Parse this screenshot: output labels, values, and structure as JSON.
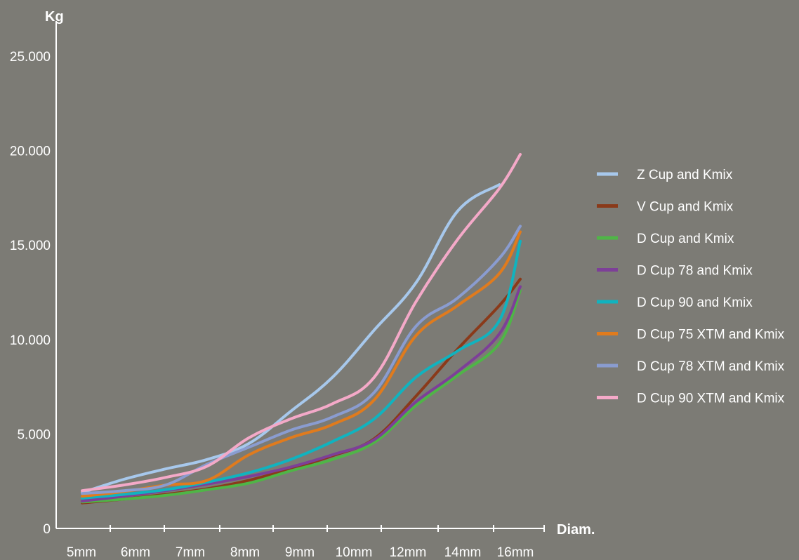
{
  "chart_data": {
    "type": "line",
    "title": "",
    "ylabel": "Kg",
    "xlabel": "Diam.",
    "categories": [
      "5mm",
      "6mm",
      "7mm",
      "8mm",
      "9mm",
      "10mm",
      "12mm",
      "14mm",
      "16mm"
    ],
    "y_ticks": [
      {
        "value": 0,
        "label": "0"
      },
      {
        "value": 5000,
        "label": "5.000"
      },
      {
        "value": 10000,
        "label": "10.000"
      },
      {
        "value": 15000,
        "label": "15.000"
      },
      {
        "value": 20000,
        "label": "20.000"
      },
      {
        "value": 25000,
        "label": "25.000"
      }
    ],
    "ylim": [
      0,
      25000
    ],
    "grid": false,
    "legend_position": "right",
    "colors": {
      "background": "#7c7b75",
      "axis": "#ffffff"
    },
    "series": [
      {
        "name": "Z Cup and Kmix",
        "color": "#a7c8ec",
        "points": [
          [
            0.0,
            1900
          ],
          [
            1.0,
            2600
          ],
          [
            2.0,
            3150
          ],
          [
            3.0,
            3650
          ],
          [
            4.0,
            4500
          ],
          [
            5.0,
            6200
          ],
          [
            6.0,
            8000
          ],
          [
            7.0,
            10500
          ],
          [
            8.0,
            13000
          ],
          [
            9.0,
            16800
          ],
          [
            10.0,
            18200
          ]
        ]
      },
      {
        "name": "V Cup and Kmix",
        "color": "#8a3a1a",
        "points": [
          [
            0.0,
            1350
          ],
          [
            1.0,
            1550
          ],
          [
            2.0,
            1800
          ],
          [
            3.0,
            2100
          ],
          [
            4.0,
            2550
          ],
          [
            5.0,
            3150
          ],
          [
            6.0,
            3850
          ],
          [
            7.0,
            4750
          ],
          [
            8.0,
            7000
          ],
          [
            9.0,
            9500
          ],
          [
            10.0,
            11800
          ],
          [
            10.5,
            13200
          ]
        ]
      },
      {
        "name": "D Cup and Kmix",
        "color": "#4fb547",
        "points": [
          [
            0.0,
            1400
          ],
          [
            1.0,
            1550
          ],
          [
            2.0,
            1750
          ],
          [
            3.0,
            2050
          ],
          [
            4.0,
            2400
          ],
          [
            5.0,
            3050
          ],
          [
            6.0,
            3650
          ],
          [
            7.0,
            4550
          ],
          [
            8.0,
            6500
          ],
          [
            9.0,
            8100
          ],
          [
            10.0,
            9800
          ],
          [
            10.5,
            12600
          ]
        ]
      },
      {
        "name": "D Cup 78 and Kmix",
        "color": "#7d3f98",
        "points": [
          [
            0.0,
            1450
          ],
          [
            1.0,
            1700
          ],
          [
            2.0,
            2000
          ],
          [
            3.0,
            2350
          ],
          [
            4.0,
            2750
          ],
          [
            5.0,
            3250
          ],
          [
            6.0,
            3900
          ],
          [
            7.0,
            4700
          ],
          [
            8.0,
            6700
          ],
          [
            9.0,
            8300
          ],
          [
            10.0,
            10300
          ],
          [
            10.5,
            12800
          ]
        ]
      },
      {
        "name": "D Cup 90 and Kmix",
        "color": "#10b3bf",
        "points": [
          [
            0.0,
            1600
          ],
          [
            1.0,
            1800
          ],
          [
            2.0,
            2050
          ],
          [
            3.0,
            2450
          ],
          [
            4.0,
            2950
          ],
          [
            5.0,
            3650
          ],
          [
            6.0,
            4600
          ],
          [
            7.0,
            5800
          ],
          [
            8.0,
            8000
          ],
          [
            9.0,
            9400
          ],
          [
            10.0,
            11000
          ],
          [
            10.5,
            15200
          ]
        ]
      },
      {
        "name": "D Cup 75 XTM and Kmix",
        "color": "#e07b1d",
        "points": [
          [
            0.0,
            1700
          ],
          [
            1.0,
            1950
          ],
          [
            2.0,
            2300
          ],
          [
            3.0,
            2550
          ],
          [
            4.0,
            3900
          ],
          [
            5.0,
            4800
          ],
          [
            6.0,
            5500
          ],
          [
            7.0,
            6800
          ],
          [
            8.0,
            10200
          ],
          [
            9.0,
            11800
          ],
          [
            10.0,
            13500
          ],
          [
            10.5,
            15700
          ]
        ]
      },
      {
        "name": "D Cup 78 XTM and Kmix",
        "color": "#8a9cd0",
        "points": [
          [
            0.0,
            1850
          ],
          [
            1.0,
            2000
          ],
          [
            2.0,
            2300
          ],
          [
            3.0,
            3400
          ],
          [
            4.0,
            4300
          ],
          [
            5.0,
            5200
          ],
          [
            6.0,
            5900
          ],
          [
            7.0,
            7200
          ],
          [
            8.0,
            10700
          ],
          [
            9.0,
            12200
          ],
          [
            10.0,
            14300
          ],
          [
            10.5,
            16000
          ]
        ]
      },
      {
        "name": "D Cup 90 XTM and Kmix",
        "color": "#f4a9c8",
        "points": [
          [
            0.0,
            2000
          ],
          [
            1.0,
            2300
          ],
          [
            2.0,
            2700
          ],
          [
            3.0,
            3300
          ],
          [
            4.0,
            4800
          ],
          [
            5.0,
            5800
          ],
          [
            6.0,
            6600
          ],
          [
            7.0,
            8000
          ],
          [
            8.0,
            12000
          ],
          [
            9.0,
            15300
          ],
          [
            10.0,
            18000
          ],
          [
            10.5,
            19800
          ]
        ]
      }
    ]
  }
}
